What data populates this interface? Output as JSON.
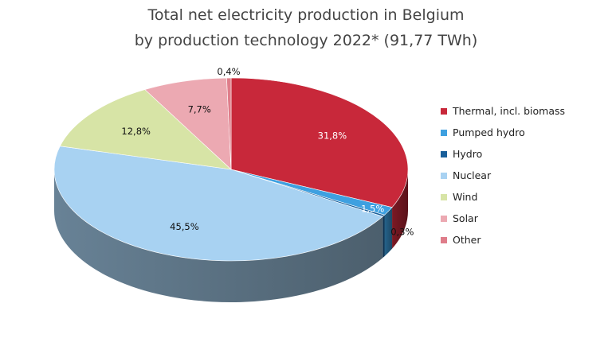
{
  "chart_data": {
    "type": "pie",
    "title_line1": "Total net electricity production in Belgium",
    "title_line2": "by production technology 2022* (91,77 TWh)",
    "categories": [
      "Thermal, incl. biomass",
      "Pumped hydro",
      "Hydro",
      "Nuclear",
      "Wind",
      "Solar",
      "Other"
    ],
    "values": [
      31.8,
      1.5,
      0.3,
      45.5,
      12.8,
      7.7,
      0.4
    ],
    "labels": [
      "31,8%",
      "1,5%",
      "0,3%",
      "45,5%",
      "12,8%",
      "7,7%",
      "0,4%"
    ],
    "colors": [
      "#c8283a",
      "#3ea0e0",
      "#1a5f9a",
      "#a8d2f2",
      "#d7e4a6",
      "#eca9b2",
      "#df7d8a"
    ],
    "label_colors": [
      "#ffffff",
      "#ffffff",
      "#111111",
      "#111111",
      "#111111",
      "#111111",
      "#111111"
    ],
    "legend_position": "right",
    "style": "3d-pie"
  }
}
